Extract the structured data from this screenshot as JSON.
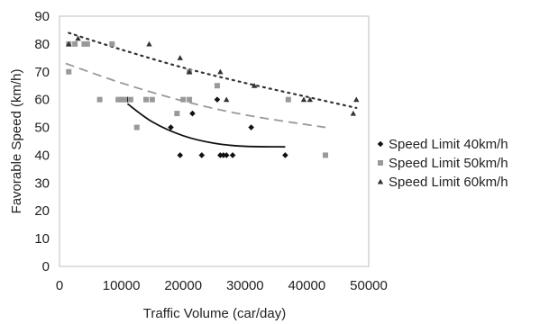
{
  "chart_data": {
    "type": "scatter",
    "xlabel": "Traffic Volume (car/day)",
    "ylabel": "Favorable Speed (km/h)",
    "xlim": [
      0,
      50000
    ],
    "ylim": [
      0,
      90
    ],
    "x_ticks": [
      "0",
      "10000",
      "20000",
      "30000",
      "40000",
      "50000"
    ],
    "y_ticks": [
      "0",
      "10",
      "20",
      "30",
      "40",
      "50",
      "60",
      "70",
      "80",
      "90"
    ],
    "grid": false,
    "legend_position": "right",
    "series": [
      {
        "name": "Speed Limit 40km/h",
        "marker": "diamond",
        "color": "#111111",
        "trend_style": "solid",
        "points": [
          [
            11000,
            60
          ],
          [
            18000,
            50
          ],
          [
            19500,
            40
          ],
          [
            21500,
            55
          ],
          [
            23000,
            40
          ],
          [
            25500,
            60
          ],
          [
            26000,
            40
          ],
          [
            26500,
            40
          ],
          [
            27000,
            40
          ],
          [
            28000,
            40
          ],
          [
            31000,
            50
          ],
          [
            36500,
            40
          ]
        ],
        "trend": [
          [
            11000,
            58.5
          ],
          [
            15000,
            52
          ],
          [
            20000,
            47
          ],
          [
            25000,
            44.3
          ],
          [
            30000,
            43.2
          ],
          [
            36500,
            43.0
          ]
        ]
      },
      {
        "name": "Speed Limit 50km/h",
        "marker": "square",
        "color": "#999999",
        "trend_style": "dashed",
        "points": [
          [
            1500,
            70
          ],
          [
            1500,
            80
          ],
          [
            2500,
            80
          ],
          [
            4000,
            80
          ],
          [
            4500,
            80
          ],
          [
            6500,
            60
          ],
          [
            8500,
            80
          ],
          [
            9500,
            60
          ],
          [
            10000,
            60
          ],
          [
            10500,
            60
          ],
          [
            11500,
            60
          ],
          [
            12500,
            50
          ],
          [
            14000,
            60
          ],
          [
            15000,
            60
          ],
          [
            19000,
            55
          ],
          [
            20000,
            60
          ],
          [
            21000,
            60
          ],
          [
            21000,
            70
          ],
          [
            25500,
            65
          ],
          [
            37000,
            60
          ],
          [
            43000,
            40
          ]
        ],
        "trend": [
          [
            1000,
            73
          ],
          [
            10000,
            66
          ],
          [
            20000,
            59.5
          ],
          [
            30000,
            54.5
          ],
          [
            43000,
            50
          ]
        ]
      },
      {
        "name": "Speed Limit 60km/h",
        "marker": "triangle",
        "color": "#333333",
        "trend_style": "dotted",
        "points": [
          [
            1500,
            80
          ],
          [
            3000,
            82
          ],
          [
            14500,
            80
          ],
          [
            19500,
            75
          ],
          [
            21000,
            70
          ],
          [
            26000,
            70
          ],
          [
            27000,
            60
          ],
          [
            31500,
            65
          ],
          [
            39500,
            60
          ],
          [
            40500,
            60
          ],
          [
            47500,
            55
          ],
          [
            48000,
            60
          ]
        ],
        "trend": [
          [
            1500,
            84
          ],
          [
            10000,
            78
          ],
          [
            20000,
            71.5
          ],
          [
            30000,
            66
          ],
          [
            40000,
            61
          ],
          [
            48000,
            57
          ]
        ]
      }
    ]
  }
}
